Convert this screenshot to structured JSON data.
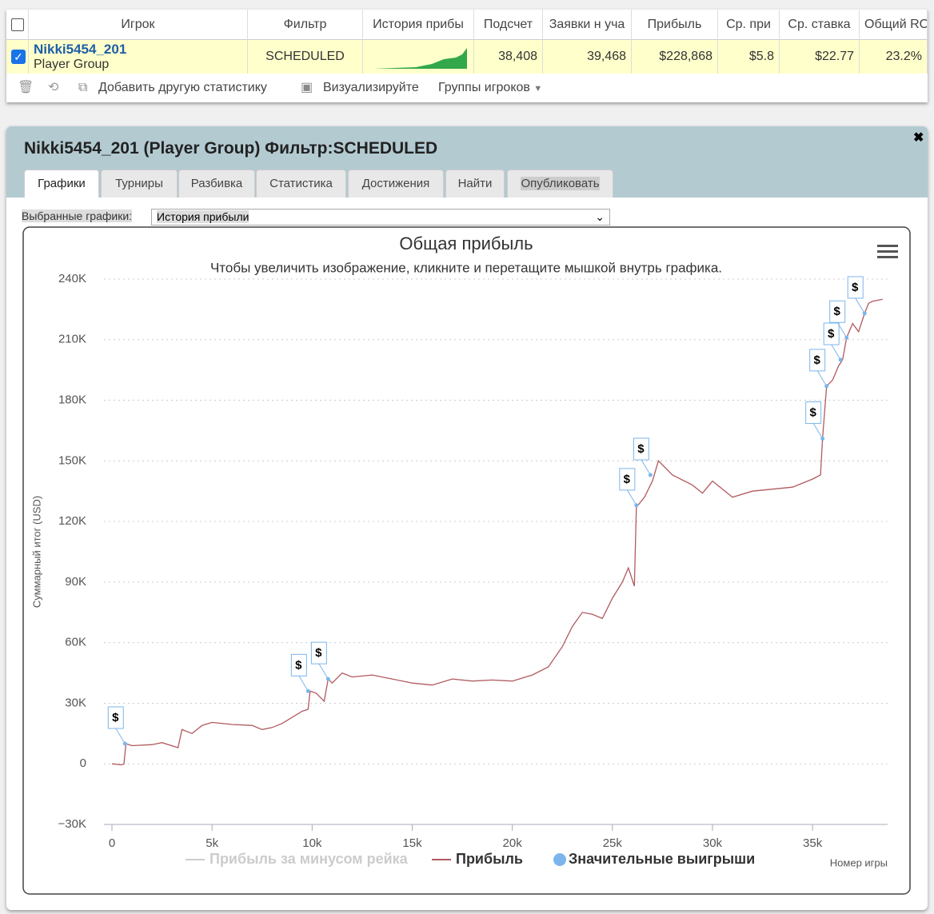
{
  "table": {
    "headers": [
      "Игрок",
      "Фильтр",
      "История прибы",
      "Подсчет",
      "Заявки н уча",
      "Прибыль",
      "Ср. при",
      "Ср. ставка",
      "Общий RO"
    ],
    "row": {
      "player": "Nikki5454_201",
      "group": "Player Group",
      "filter": "SCHEDULED",
      "count": "38,408",
      "entries": "39,468",
      "profit": "$228,868",
      "avg_profit": "$5.8",
      "avg_stake": "$22.77",
      "roi": "23.2%"
    }
  },
  "toolbar": {
    "add": "Добавить другую статистику",
    "visualize": "Визуализируйте",
    "groups": "Группы игроков"
  },
  "panel": {
    "title": "Nikki5454_201 (Player Group) Фильтр:SCHEDULED",
    "tabs": [
      "Графики",
      "Турниры",
      "Разбивка",
      "Статистика",
      "Достижения",
      "Найти",
      "Опубликовать"
    ],
    "select_label": "Выбранные графики:",
    "select_value": "История прибыли"
  },
  "chart_data": {
    "type": "line",
    "title": "Общая прибыль",
    "subtitle": "Чтобы увеличить изображение, кликните и перетащите мышкой внутрь графика.",
    "ylabel": "Суммарный итог (USD)",
    "xlabel": "Номер игры",
    "flag_text": "$",
    "xlim": [
      -400,
      38750
    ],
    "ylim": [
      -30000,
      240000
    ],
    "xticks": [
      0,
      {
        "value": 5000,
        "label": "5k"
      },
      {
        "value": 10000,
        "label": "10k"
      },
      {
        "value": 15000,
        "label": "15k"
      },
      {
        "value": 20000,
        "label": "20k"
      },
      {
        "value": 25000,
        "label": "25k"
      },
      {
        "value": 30000,
        "label": "30k"
      },
      {
        "value": 35000,
        "label": "35k"
      }
    ],
    "yticks": [
      {
        "value": -30000,
        "label": "−30K"
      },
      0,
      {
        "value": 30000,
        "label": "30K"
      },
      {
        "value": 60000,
        "label": "60K"
      },
      {
        "value": 90000,
        "label": "90K"
      },
      {
        "value": 120000,
        "label": "120K"
      },
      {
        "value": 150000,
        "label": "150K"
      },
      {
        "value": 180000,
        "label": "180K"
      },
      {
        "value": 210000,
        "label": "210K"
      },
      {
        "value": 240000,
        "label": "240K"
      }
    ],
    "grid": true,
    "series": [
      {
        "name": "Прибыль за минусом рейка",
        "color": "#cccccc",
        "visible": false
      },
      {
        "name": "Прибыль",
        "color": "#b05a5f",
        "x": [
          0,
          500,
          600,
          700,
          1000,
          2000,
          2500,
          3300,
          3500,
          4000,
          4500,
          5000,
          6000,
          7000,
          7500,
          8000,
          8500,
          9000,
          9500,
          9800,
          9900,
          10200,
          10600,
          10800,
          11000,
          11500,
          12000,
          13000,
          14000,
          15000,
          16000,
          17000,
          18000,
          19000,
          20000,
          21000,
          21800,
          22500,
          23000,
          23500,
          24000,
          24500,
          25000,
          25500,
          25800,
          26100,
          26200,
          26600,
          27000,
          27300,
          28000,
          29000,
          29500,
          30000,
          31000,
          32000,
          33000,
          34000,
          35000,
          35400,
          35500,
          35700,
          36000,
          36300,
          36500,
          36700,
          37000,
          37300,
          37600,
          37800,
          38000,
          38500
        ],
        "values": [
          0,
          -500,
          0,
          10000,
          9000,
          9500,
          10500,
          8000,
          17000,
          15000,
          19000,
          20500,
          19500,
          19000,
          17000,
          18000,
          20000,
          23000,
          26000,
          27000,
          36000,
          35000,
          31000,
          42000,
          40000,
          45000,
          43000,
          44000,
          42000,
          40000,
          39000,
          42000,
          41000,
          41500,
          41000,
          44000,
          48000,
          58000,
          68000,
          75000,
          74000,
          72000,
          82000,
          90000,
          97000,
          88000,
          127000,
          132000,
          140000,
          150000,
          143000,
          138000,
          134000,
          140000,
          132000,
          135000,
          136000,
          137000,
          141000,
          143000,
          161000,
          187000,
          190000,
          197000,
          200000,
          211000,
          218000,
          214000,
          223000,
          228000,
          229000,
          230000
        ]
      },
      {
        "name": "Значительные выигрыши",
        "color": "#7cb5ec",
        "x": [
          650,
          9800,
          10800,
          26200,
          26900,
          35500,
          35700,
          36400,
          36700,
          37600
        ],
        "values": [
          10000,
          36000,
          42000,
          128000,
          143000,
          161000,
          187000,
          200000,
          211000,
          223000
        ]
      }
    ]
  }
}
